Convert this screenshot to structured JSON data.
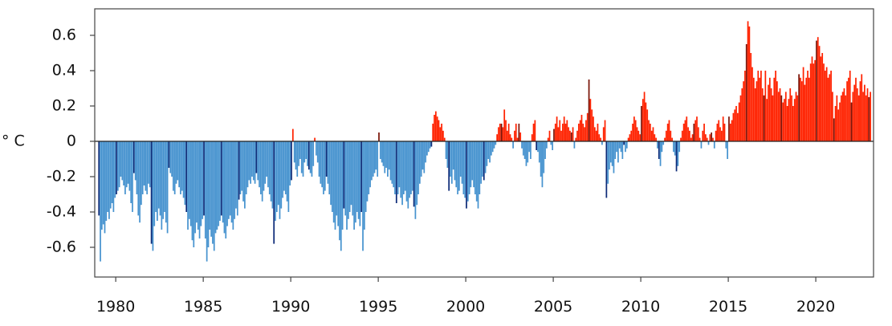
{
  "chart_data": {
    "type": "bar",
    "title": "",
    "ylabel": "° C",
    "xlabel": "",
    "ylim": [
      -0.75,
      0.75
    ],
    "xlim": [
      1978.8,
      2023.3
    ],
    "x_ticks": [
      1980,
      1985,
      1990,
      1995,
      2000,
      2005,
      2010,
      2015,
      2020
    ],
    "y_ticks": [
      0.6,
      0.4,
      0.2,
      0,
      -0.2,
      -0.4,
      -0.6
    ],
    "y_tick_labels": [
      "0.6",
      "0.4",
      "0.2",
      "0",
      "-0.2",
      "-0.4",
      "-0.6"
    ],
    "grid": false,
    "legend": "none",
    "colors": {
      "positive": "#ff2200",
      "negative": "#4793cf",
      "positive_january": "#7a1408",
      "negative_january": "#0d2b78"
    },
    "monthly_anomalies_by_year": [
      {
        "year": 1979,
        "values": [
          -0.42,
          -0.68,
          -0.5,
          -0.47,
          -0.52,
          -0.45,
          -0.4,
          -0.44,
          -0.38,
          -0.35,
          -0.4,
          -0.32
        ]
      },
      {
        "year": 1980,
        "values": [
          -0.3,
          -0.28,
          -0.26,
          -0.2,
          -0.22,
          -0.25,
          -0.3,
          -0.26,
          -0.24,
          -0.28,
          -0.35,
          -0.4
        ]
      },
      {
        "year": 1981,
        "values": [
          -0.18,
          -0.22,
          -0.3,
          -0.42,
          -0.46,
          -0.36,
          -0.3,
          -0.25,
          -0.28,
          -0.3,
          -0.24,
          -0.26
        ]
      },
      {
        "year": 1982,
        "values": [
          -0.58,
          -0.62,
          -0.48,
          -0.4,
          -0.45,
          -0.38,
          -0.42,
          -0.5,
          -0.44,
          -0.4,
          -0.46,
          -0.52
        ]
      },
      {
        "year": 1983,
        "values": [
          -0.15,
          -0.18,
          -0.2,
          -0.28,
          -0.3,
          -0.24,
          -0.22,
          -0.26,
          -0.3,
          -0.28,
          -0.32,
          -0.36
        ]
      },
      {
        "year": 1984,
        "values": [
          -0.4,
          -0.5,
          -0.44,
          -0.48,
          -0.56,
          -0.6,
          -0.52,
          -0.46,
          -0.5,
          -0.55,
          -0.48,
          -0.44
        ]
      },
      {
        "year": 1985,
        "values": [
          -0.42,
          -0.55,
          -0.68,
          -0.6,
          -0.5,
          -0.54,
          -0.58,
          -0.62,
          -0.52,
          -0.5,
          -0.48,
          -0.45
        ]
      },
      {
        "year": 1986,
        "values": [
          -0.42,
          -0.46,
          -0.52,
          -0.55,
          -0.48,
          -0.44,
          -0.42,
          -0.46,
          -0.5,
          -0.44,
          -0.38,
          -0.42
        ]
      },
      {
        "year": 1987,
        "values": [
          -0.33,
          -0.3,
          -0.28,
          -0.34,
          -0.38,
          -0.3,
          -0.26,
          -0.22,
          -0.24,
          -0.2,
          -0.22,
          -0.24
        ]
      },
      {
        "year": 1988,
        "values": [
          -0.18,
          -0.22,
          -0.26,
          -0.3,
          -0.34,
          -0.28,
          -0.24,
          -0.2,
          -0.26,
          -0.3,
          -0.34,
          -0.38
        ]
      },
      {
        "year": 1989,
        "values": [
          -0.58,
          -0.45,
          -0.4,
          -0.36,
          -0.44,
          -0.38,
          -0.32,
          -0.28,
          -0.3,
          -0.34,
          -0.4,
          -0.25
        ]
      },
      {
        "year": 1990,
        "values": [
          -0.22,
          0.07,
          -0.12,
          -0.16,
          -0.2,
          -0.14,
          -0.1,
          -0.18,
          -0.2,
          -0.12,
          -0.1,
          -0.14
        ]
      },
      {
        "year": 1991,
        "values": [
          -0.16,
          -0.18,
          -0.2,
          -0.14,
          0.02,
          -0.08,
          -0.12,
          -0.2,
          -0.24,
          -0.26,
          -0.3,
          -0.28
        ]
      },
      {
        "year": 1992,
        "values": [
          -0.2,
          -0.24,
          -0.3,
          -0.36,
          -0.4,
          -0.46,
          -0.5,
          -0.42,
          -0.48,
          -0.56,
          -0.62,
          -0.5
        ]
      },
      {
        "year": 1993,
        "values": [
          -0.38,
          -0.42,
          -0.5,
          -0.44,
          -0.4,
          -0.36,
          -0.42,
          -0.5,
          -0.46,
          -0.4,
          -0.44,
          -0.48
        ]
      },
      {
        "year": 1994,
        "values": [
          -0.4,
          -0.62,
          -0.5,
          -0.4,
          -0.34,
          -0.3,
          -0.26,
          -0.22,
          -0.2,
          -0.18,
          -0.16,
          -0.2
        ]
      },
      {
        "year": 1995,
        "values": [
          0.05,
          -0.1,
          -0.12,
          -0.14,
          -0.18,
          -0.15,
          -0.2,
          -0.16,
          -0.22,
          -0.24,
          -0.26,
          -0.3
        ]
      },
      {
        "year": 1996,
        "values": [
          -0.35,
          -0.3,
          -0.26,
          -0.32,
          -0.36,
          -0.3,
          -0.28,
          -0.34,
          -0.38,
          -0.32,
          -0.3,
          -0.28
        ]
      },
      {
        "year": 1997,
        "values": [
          -0.37,
          -0.44,
          -0.36,
          -0.3,
          -0.24,
          -0.2,
          -0.16,
          -0.18,
          -0.12,
          -0.08,
          -0.06,
          -0.04
        ]
      },
      {
        "year": 1998,
        "values": [
          -0.03,
          0.1,
          0.15,
          0.17,
          0.14,
          0.12,
          0.08,
          0.1,
          0.06,
          0.02,
          -0.1,
          -0.15
        ]
      },
      {
        "year": 1999,
        "values": [
          -0.28,
          -0.2,
          -0.24,
          -0.16,
          -0.22,
          -0.26,
          -0.3,
          -0.28,
          -0.2,
          -0.24,
          -0.3,
          -0.32
        ]
      },
      {
        "year": 2000,
        "values": [
          -0.38,
          -0.34,
          -0.3,
          -0.26,
          -0.22,
          -0.26,
          -0.3,
          -0.34,
          -0.38,
          -0.3,
          -0.24,
          -0.2
        ]
      },
      {
        "year": 2001,
        "values": [
          -0.22,
          -0.18,
          -0.14,
          -0.1,
          -0.12,
          -0.08,
          -0.06,
          -0.04,
          -0.02,
          0.04,
          0.08,
          0.1
        ]
      },
      {
        "year": 2002,
        "values": [
          0.1,
          0.08,
          0.18,
          0.12,
          0.06,
          0.1,
          0.04,
          0.02,
          -0.04,
          0.06,
          0.1,
          0.02
        ]
      },
      {
        "year": 2003,
        "values": [
          0.1,
          0.05,
          -0.04,
          -0.08,
          -0.1,
          -0.14,
          -0.12,
          -0.06,
          -0.1,
          0.04,
          0.1,
          0.12
        ]
      },
      {
        "year": 2004,
        "values": [
          -0.05,
          -0.06,
          -0.12,
          -0.2,
          -0.26,
          -0.18,
          -0.1,
          -0.04,
          0.02,
          0.06,
          -0.02,
          -0.05
        ]
      },
      {
        "year": 2005,
        "values": [
          0.07,
          0.1,
          0.14,
          0.08,
          0.12,
          0.06,
          0.1,
          0.14,
          0.1,
          0.12,
          0.08,
          0.06
        ]
      },
      {
        "year": 2006,
        "values": [
          0.05,
          0.08,
          -0.04,
          0.02,
          0.06,
          0.1,
          0.12,
          0.15,
          0.1,
          0.08,
          0.12,
          0.16
        ]
      },
      {
        "year": 2007,
        "values": [
          0.35,
          0.24,
          0.18,
          0.14,
          0.08,
          0.06,
          0.1,
          0.04,
          0.02,
          -0.02,
          0.08,
          0.12
        ]
      },
      {
        "year": 2008,
        "values": [
          -0.32,
          -0.24,
          -0.16,
          -0.12,
          -0.14,
          -0.18,
          -0.1,
          -0.06,
          -0.12,
          -0.04,
          -0.06,
          -0.1
        ]
      },
      {
        "year": 2009,
        "values": [
          -0.02,
          -0.06,
          -0.04,
          0.02,
          0.04,
          0.06,
          0.1,
          0.14,
          0.12,
          0.08,
          0.06,
          0.04
        ]
      },
      {
        "year": 2010,
        "values": [
          0.2,
          0.24,
          0.28,
          0.22,
          0.18,
          0.12,
          0.1,
          0.06,
          0.08,
          0.04,
          0.02,
          -0.04
        ]
      },
      {
        "year": 2011,
        "values": [
          -0.1,
          -0.14,
          -0.06,
          -0.02,
          0.02,
          0.06,
          0.1,
          0.12,
          0.06,
          0.02,
          -0.06,
          -0.08
        ]
      },
      {
        "year": 2012,
        "values": [
          -0.17,
          -0.14,
          -0.06,
          0.02,
          0.06,
          0.1,
          0.12,
          0.14,
          0.08,
          0.06,
          0.02,
          0.04
        ]
      },
      {
        "year": 2013,
        "values": [
          0.1,
          0.12,
          0.14,
          0.08,
          0.02,
          -0.04,
          0.06,
          0.1,
          0.04,
          0.02,
          -0.02,
          0.04
        ]
      },
      {
        "year": 2014,
        "values": [
          0.05,
          0.02,
          -0.04,
          0.06,
          0.1,
          0.12,
          0.08,
          0.06,
          0.14,
          0.1,
          -0.04,
          -0.1
        ]
      },
      {
        "year": 2015,
        "values": [
          0.14,
          0.1,
          0.12,
          0.16,
          0.18,
          0.2,
          0.16,
          0.22,
          0.26,
          0.3,
          0.34,
          0.4
        ]
      },
      {
        "year": 2016,
        "values": [
          0.55,
          0.68,
          0.65,
          0.5,
          0.42,
          0.36,
          0.3,
          0.34,
          0.4,
          0.36,
          0.4,
          0.3
        ]
      },
      {
        "year": 2017,
        "values": [
          0.26,
          0.4,
          0.24,
          0.32,
          0.36,
          0.3,
          0.26,
          0.36,
          0.4,
          0.34,
          0.28,
          0.3
        ]
      },
      {
        "year": 2018,
        "values": [
          0.26,
          0.22,
          0.24,
          0.28,
          0.2,
          0.24,
          0.3,
          0.26,
          0.2,
          0.24,
          0.28,
          0.26
        ]
      },
      {
        "year": 2019,
        "values": [
          0.38,
          0.36,
          0.34,
          0.42,
          0.32,
          0.36,
          0.4,
          0.36,
          0.44,
          0.48,
          0.44,
          0.46
        ]
      },
      {
        "year": 2020,
        "values": [
          0.57,
          0.59,
          0.54,
          0.48,
          0.5,
          0.44,
          0.4,
          0.42,
          0.36,
          0.38,
          0.4,
          0.28
        ]
      },
      {
        "year": 2021,
        "values": [
          0.13,
          0.2,
          0.26,
          0.18,
          0.22,
          0.26,
          0.28,
          0.3,
          0.26,
          0.34,
          0.36,
          0.4
        ]
      },
      {
        "year": 2022,
        "values": [
          0.22,
          0.28,
          0.32,
          0.36,
          0.3,
          0.26,
          0.34,
          0.38,
          0.28,
          0.32,
          0.26,
          0.3
        ]
      },
      {
        "year": 2023,
        "values": [
          0.25,
          0.28
        ]
      }
    ]
  }
}
